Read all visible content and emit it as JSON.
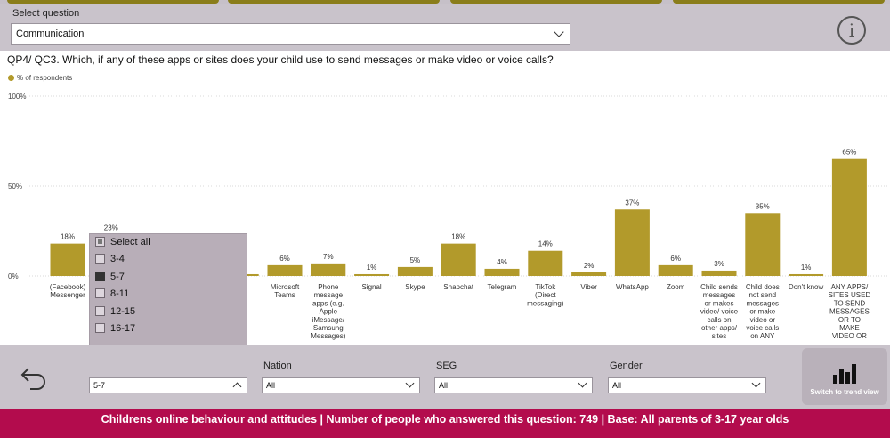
{
  "header": {
    "select_label": "Select question",
    "selected_question": "Communication",
    "info_icon": "info-icon"
  },
  "question_title": "QP4/ QC3. Which, if any of these apps or sites does your child use to send messages or make video or voice calls?",
  "legend_label": "% of respondents",
  "colors": {
    "bar": "#b29a2b",
    "footer": "#b30c4d",
    "panel": "#c9c3cb",
    "slicer": "#b8aeb8"
  },
  "chart_data": {
    "type": "bar",
    "title": "QP4/ QC3. Which, if any of these apps or sites does your child use to send messages or make video or voice calls?",
    "xlabel": "",
    "ylabel": "% of respondents",
    "ylim": [
      0,
      100
    ],
    "yticks": [
      0,
      50,
      100
    ],
    "ytick_labels": [
      "0%",
      "50%",
      "100%"
    ],
    "grid": true,
    "legend": "top-left",
    "series": [
      {
        "name": "% of respondents"
      }
    ],
    "categories": [
      "(Facebook) Messenger",
      "",
      "",
      "",
      "",
      "Microsoft Teams",
      "Phone message apps (e.g. Apple iMessage/ Samsung Messages)",
      "Signal",
      "Skype",
      "Snapchat",
      "Telegram",
      "TikTok (Direct messaging)",
      "Viber",
      "WhatsApp",
      "Zoom",
      "Child sends messages or makes video/ voice calls on other apps/ sites",
      "Child does not send messages or make video or voice calls on ANY",
      "Don't know",
      "ANY APPS/ SITES USED TO SEND MESSAGES OR TO MAKE VIDEO OR VOICE CALLS"
    ],
    "category_lines": [
      [
        "(Facebook)",
        "Messenger"
      ],
      [],
      [],
      [],
      [],
      [
        "Microsoft",
        "Teams"
      ],
      [
        "Phone",
        "message",
        "apps (e.g.",
        "Apple",
        "iMessage/",
        "Samsung",
        "Messages)"
      ],
      [
        "Signal"
      ],
      [
        "Skype"
      ],
      [
        "Snapchat"
      ],
      [
        "Telegram"
      ],
      [
        "TikTok",
        "(Direct",
        "messaging)"
      ],
      [
        "Viber"
      ],
      [
        "WhatsApp"
      ],
      [
        "Zoom"
      ],
      [
        "Child sends",
        "messages",
        "or makes",
        "video/ voice",
        "calls on",
        "other apps/",
        "sites"
      ],
      [
        "Child does",
        "not send",
        "messages",
        "or make",
        "video or",
        "voice calls",
        "on ANY"
      ],
      [
        "Don't know"
      ],
      [
        "ANY APPS/",
        "SITES USED",
        "TO SEND",
        "MESSAGES",
        "OR TO",
        "MAKE",
        "VIDEO OR"
      ]
    ],
    "values": [
      18,
      23,
      null,
      null,
      1,
      6,
      7,
      1,
      5,
      18,
      4,
      14,
      2,
      37,
      6,
      3,
      35,
      1,
      65
    ],
    "data_labels": [
      "18%",
      "23%",
      "",
      "",
      "",
      "6%",
      "7%",
      "1%",
      "5%",
      "18%",
      "4%",
      "14%",
      "2%",
      "37%",
      "6%",
      "3%",
      "35%",
      "1%",
      "65%"
    ]
  },
  "age_slicer": {
    "items": [
      {
        "label": "Select all",
        "state": "partial"
      },
      {
        "label": "3-4",
        "state": "unchecked"
      },
      {
        "label": "5-7",
        "state": "checked"
      },
      {
        "label": "8-11",
        "state": "unchecked"
      },
      {
        "label": "12-15",
        "state": "unchecked"
      },
      {
        "label": "16-17",
        "state": "unchecked"
      }
    ],
    "selected": "5-7"
  },
  "filters": {
    "nation": {
      "label": "Nation",
      "value": "All"
    },
    "seg": {
      "label": "SEG",
      "value": "All"
    },
    "gender": {
      "label": "Gender",
      "value": "All"
    }
  },
  "trend_button": {
    "label": "Switch to trend view",
    "icon": "bar-chart-icon"
  },
  "back_button": {
    "icon": "undo-arrow-icon"
  },
  "footer": {
    "text": "Childrens online behaviour and attitudes  |  Number of people who answered this question:  749  |  Base: All parents of 3-17 year olds"
  }
}
